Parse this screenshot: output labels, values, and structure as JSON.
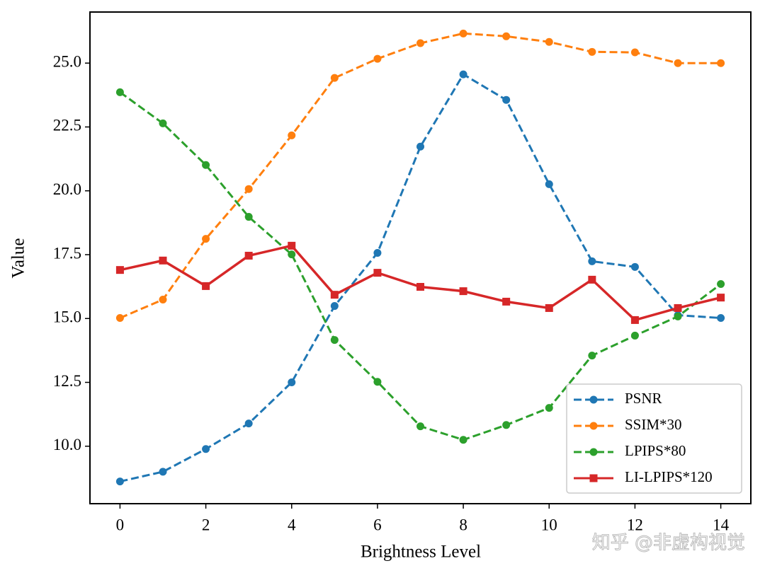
{
  "chart_data": {
    "type": "line",
    "x_label": "Brightness Level",
    "y_label": "Value",
    "x": [
      0,
      1,
      2,
      3,
      4,
      5,
      6,
      7,
      8,
      9,
      10,
      11,
      12,
      13,
      14
    ],
    "xlim": [
      -0.7,
      14.7
    ],
    "xticks": [
      0,
      2,
      4,
      6,
      8,
      10,
      12,
      14
    ],
    "ylim": [
      7.75,
      27.0
    ],
    "yticks": [
      {
        "value": 10,
        "label": "10.0"
      },
      12.5,
      {
        "value": 15,
        "label": "15.0"
      },
      17.5,
      {
        "value": 20,
        "label": "20.0"
      },
      22.5,
      {
        "value": 25,
        "label": "25.0"
      }
    ],
    "grid": false,
    "legend": "lower right",
    "series": [
      {
        "name": "PSNR",
        "color": "#1f77b4",
        "linestyle": "dashed",
        "marker": "circle",
        "values": [
          8.62,
          9.0,
          9.89,
          10.89,
          12.5,
          15.49,
          17.57,
          21.73,
          24.56,
          23.56,
          20.26,
          17.24,
          17.02,
          15.13,
          15.02
        ]
      },
      {
        "name": "SSIM*30",
        "color": "#ff7f0e",
        "linestyle": "dashed",
        "marker": "circle",
        "values": [
          15.02,
          15.74,
          18.12,
          20.07,
          22.17,
          24.42,
          25.17,
          25.78,
          26.16,
          26.05,
          25.83,
          25.44,
          25.42,
          25.0,
          25.0
        ]
      },
      {
        "name": "LPIPS*80",
        "color": "#2ca02c",
        "linestyle": "dashed",
        "marker": "circle",
        "values": [
          23.86,
          22.64,
          21.01,
          18.98,
          17.51,
          14.16,
          12.52,
          10.78,
          10.25,
          10.83,
          11.5,
          13.55,
          14.33,
          15.08,
          16.35
        ]
      },
      {
        "name": "LI-LPIPS*120",
        "color": "#d62728",
        "linestyle": "solid",
        "marker": "square",
        "values": [
          16.9,
          17.27,
          16.27,
          17.46,
          17.85,
          15.93,
          16.79,
          16.24,
          16.07,
          15.66,
          15.41,
          16.52,
          14.94,
          15.41,
          15.82
        ]
      }
    ],
    "watermark": "知乎 @非虚构视觉"
  }
}
